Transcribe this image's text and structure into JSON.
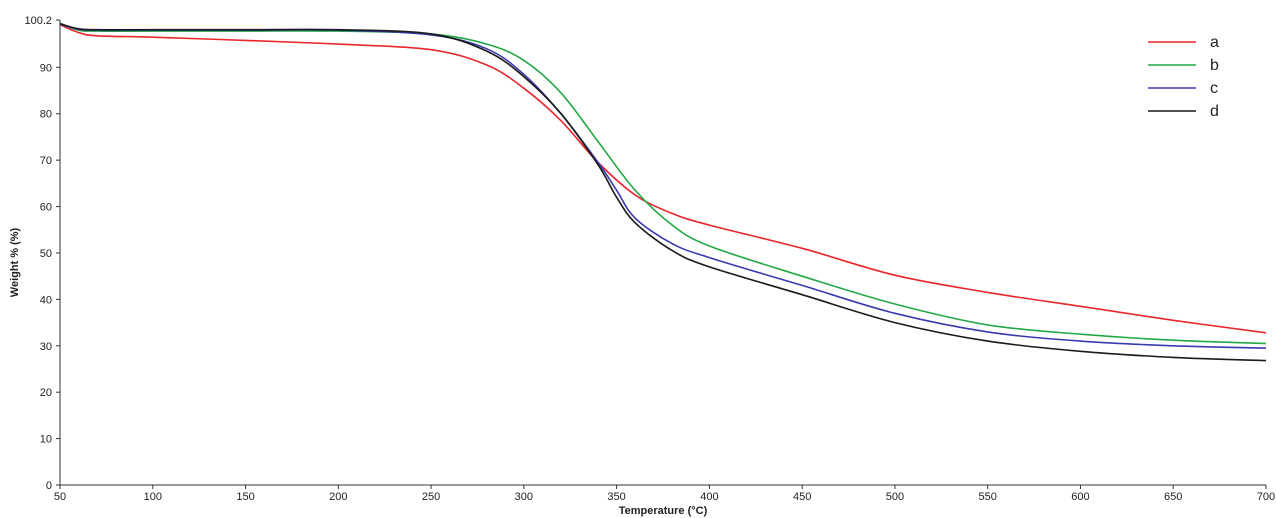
{
  "chart_data": {
    "type": "line",
    "xlabel": "Temperature (°C)",
    "ylabel": "Weight % (%)",
    "xlim": [
      50,
      700
    ],
    "ylim": [
      0,
      100.2
    ],
    "x_ticks": [
      50,
      100,
      150,
      200,
      250,
      300,
      350,
      400,
      450,
      500,
      550,
      600,
      650,
      700
    ],
    "x_tick_labels": [
      "50",
      "100",
      "150",
      "200",
      "250",
      "300",
      "350",
      "400",
      "450",
      "500",
      "550",
      "600",
      "650",
      "700"
    ],
    "y_ticks": [
      0,
      10,
      20,
      30,
      40,
      50,
      60,
      70,
      80,
      90,
      100.2
    ],
    "y_tick_labels": [
      "0",
      "10",
      "20",
      "30",
      "40",
      "50",
      "60",
      "70",
      "80",
      "90",
      "100.2"
    ],
    "grid": false,
    "legend": "top-right",
    "series": [
      {
        "name": "a",
        "color": "#e8262b",
        "x": [
          50,
          60,
          70,
          100,
          150,
          200,
          250,
          280,
          300,
          320,
          340,
          360,
          380,
          400,
          450,
          500,
          550,
          600,
          650,
          700
        ],
        "y": [
          99.2,
          97.5,
          96.8,
          96.5,
          95.8,
          95.0,
          93.8,
          90.5,
          85.5,
          78.5,
          69.5,
          62.5,
          58.5,
          56.0,
          51.0,
          45.2,
          41.5,
          38.5,
          35.5,
          32.8
        ]
      },
      {
        "name": "b",
        "color": "#22a845",
        "x": [
          50,
          60,
          70,
          100,
          150,
          200,
          250,
          280,
          300,
          320,
          340,
          360,
          380,
          400,
          450,
          500,
          550,
          600,
          650,
          700
        ],
        "y": [
          99.5,
          98.0,
          97.8,
          97.8,
          97.8,
          97.8,
          97.2,
          95.0,
          91.5,
          84.5,
          74.0,
          63.5,
          56.0,
          51.5,
          45.0,
          39.0,
          34.5,
          32.5,
          31.2,
          30.5
        ]
      },
      {
        "name": "c",
        "color": "#3a3ab0",
        "x": [
          50,
          60,
          70,
          100,
          150,
          200,
          250,
          280,
          300,
          320,
          340,
          350,
          360,
          380,
          400,
          450,
          500,
          550,
          600,
          650,
          700
        ],
        "y": [
          99.3,
          98.2,
          98.0,
          98.0,
          98.0,
          98.0,
          97.0,
          94.0,
          88.5,
          80.0,
          69.5,
          63.5,
          57.5,
          52.0,
          49.0,
          43.0,
          37.0,
          33.0,
          31.0,
          30.0,
          29.5
        ]
      },
      {
        "name": "d",
        "color": "#1a1a1a",
        "x": [
          50,
          60,
          70,
          100,
          150,
          200,
          250,
          280,
          300,
          320,
          340,
          350,
          360,
          380,
          400,
          450,
          500,
          550,
          600,
          650,
          700
        ],
        "y": [
          99.4,
          98.3,
          98.1,
          98.1,
          98.1,
          98.1,
          97.2,
          93.5,
          88.0,
          80.0,
          69.0,
          62.0,
          56.5,
          50.5,
          47.0,
          41.0,
          35.0,
          31.0,
          28.8,
          27.5,
          26.8
        ]
      }
    ]
  }
}
